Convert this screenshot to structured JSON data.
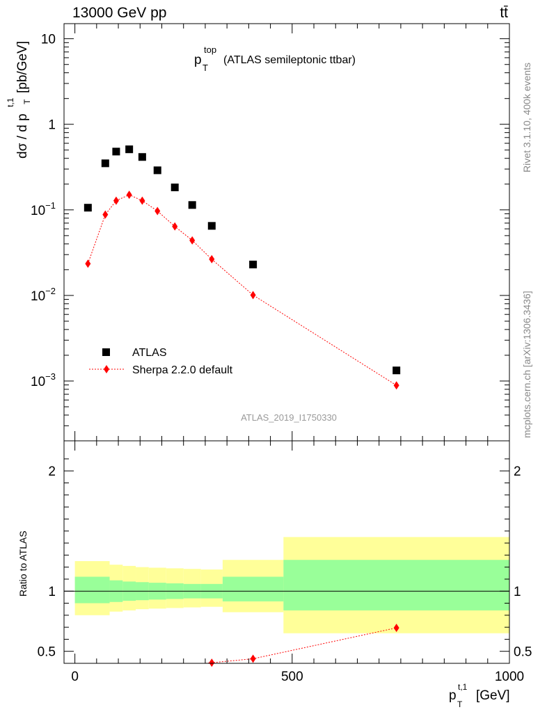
{
  "header": {
    "energy_label": "13000 GeV pp",
    "process_label": "tt̄",
    "title_main": "p",
    "title_sup": "top",
    "title_sub": "T",
    "title_rest": "(ATLAS semileptonic ttbar)"
  },
  "sidebar": {
    "rivet_label": "Rivet 3.1.10,  400k events",
    "mcplots_label": "mcplots.cern.ch [arXiv:1306.3436]"
  },
  "watermark": "ATLAS_2019_I1750330",
  "legend": {
    "position": "bottom-left",
    "items": [
      {
        "label": "ATLAS",
        "marker": "square",
        "color": "#000000"
      },
      {
        "label": "Sherpa 2.2.0 default",
        "marker": "diamond",
        "color": "#ff0000"
      }
    ]
  },
  "axis_text": {
    "ylabel_main": "dσ / d p",
    "ylabel_sup": "t,1",
    "ylabel_sub": "T",
    "ylabel_unit": "[pb/GeV]",
    "ylabel_ratio": "Ratio to ATLAS",
    "xlabel_main": "p",
    "xlabel_sup": "t,1",
    "xlabel_sub": "T",
    "xlabel_unit": "[GeV]"
  },
  "chart_data": [
    {
      "type": "scatter",
      "panel": "main",
      "y_scale": "log",
      "xlim": [
        -25,
        1000
      ],
      "ylim": [
        0.0002,
        15
      ],
      "x_ticks": [
        0,
        500,
        1000
      ],
      "y_ticks": [
        {
          "value": 10,
          "base": "10",
          "exp": ""
        },
        {
          "value": 1,
          "base": "1",
          "exp": ""
        },
        {
          "value": 0.1,
          "base": "10",
          "exp": "−1"
        },
        {
          "value": 0.01,
          "base": "10",
          "exp": "−2"
        },
        {
          "value": 0.001,
          "base": "10",
          "exp": "−3"
        }
      ],
      "series": [
        {
          "name": "ATLAS",
          "x": [
            30,
            70,
            95,
            125,
            155,
            190,
            230,
            270,
            315,
            410,
            740
          ],
          "y": [
            0.106,
            0.35,
            0.48,
            0.51,
            0.415,
            0.29,
            0.183,
            0.114,
            0.065,
            0.023,
            0.00133
          ]
        },
        {
          "name": "Sherpa 2.2.0 default",
          "x": [
            30,
            70,
            95,
            125,
            155,
            190,
            230,
            270,
            315,
            410,
            740
          ],
          "y": [
            0.0235,
            0.088,
            0.128,
            0.15,
            0.128,
            0.097,
            0.064,
            0.044,
            0.0265,
            0.0101,
            0.00089
          ]
        }
      ]
    },
    {
      "type": "line",
      "panel": "ratio",
      "xlim": [
        -25,
        1000
      ],
      "ylim": [
        0.4,
        2.25
      ],
      "x_ticks": [
        0,
        500,
        1000
      ],
      "y_ticks": [
        0.5,
        1,
        2
      ],
      "reference_line": 1,
      "bands": [
        {
          "x0": 0,
          "x1": 80,
          "yellow": [
            0.8,
            1.25
          ],
          "green": [
            0.9,
            1.12
          ]
        },
        {
          "x0": 80,
          "x1": 110,
          "yellow": [
            0.83,
            1.22
          ],
          "green": [
            0.91,
            1.09
          ]
        },
        {
          "x0": 110,
          "x1": 140,
          "yellow": [
            0.84,
            1.21
          ],
          "green": [
            0.92,
            1.08
          ]
        },
        {
          "x0": 140,
          "x1": 170,
          "yellow": [
            0.85,
            1.2
          ],
          "green": [
            0.925,
            1.075
          ]
        },
        {
          "x0": 170,
          "x1": 210,
          "yellow": [
            0.855,
            1.195
          ],
          "green": [
            0.93,
            1.07
          ]
        },
        {
          "x0": 210,
          "x1": 250,
          "yellow": [
            0.86,
            1.19
          ],
          "green": [
            0.935,
            1.065
          ]
        },
        {
          "x0": 250,
          "x1": 290,
          "yellow": [
            0.865,
            1.185
          ],
          "green": [
            0.94,
            1.06
          ]
        },
        {
          "x0": 290,
          "x1": 340,
          "yellow": [
            0.87,
            1.18
          ],
          "green": [
            0.94,
            1.06
          ]
        },
        {
          "x0": 340,
          "x1": 480,
          "yellow": [
            0.825,
            1.26
          ],
          "green": [
            0.915,
            1.12
          ]
        },
        {
          "x0": 480,
          "x1": 1000,
          "yellow": [
            0.65,
            1.45
          ],
          "green": [
            0.84,
            1.26
          ]
        }
      ],
      "series": [
        {
          "name": "Sherpa 2.2.0 default",
          "x": [
            315,
            410,
            740
          ],
          "y": [
            0.405,
            0.438,
            0.695
          ],
          "line_start": [
            300,
            0.4
          ]
        }
      ]
    }
  ]
}
